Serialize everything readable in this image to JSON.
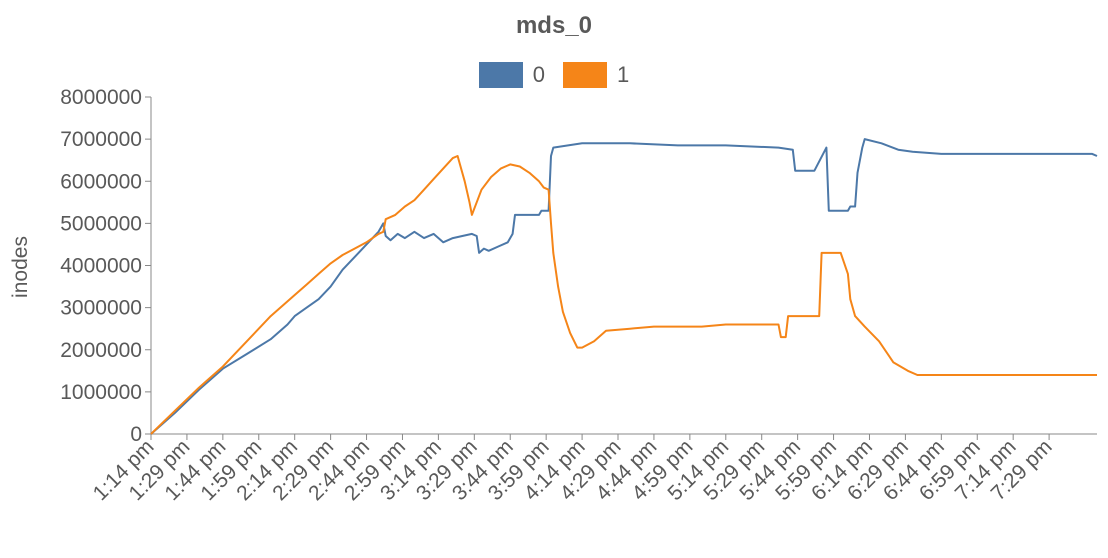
{
  "chart_data": {
    "type": "line",
    "title": "mds_0",
    "ylabel": "inodes",
    "xlabel": "",
    "ylim": [
      0,
      8000000
    ],
    "y_ticks": [
      0,
      1000000,
      2000000,
      3000000,
      4000000,
      5000000,
      6000000,
      7000000,
      8000000
    ],
    "x_ticks": [
      "1:14 pm",
      "1:29 pm",
      "1:44 pm",
      "1:59 pm",
      "2:14 pm",
      "2:29 pm",
      "2:44 pm",
      "2:59 pm",
      "3:14 pm",
      "3:29 pm",
      "3:44 pm",
      "3:59 pm",
      "4:14 pm",
      "4:29 pm",
      "4:44 pm",
      "4:59 pm",
      "5:14 pm",
      "5:29 pm",
      "5:44 pm",
      "5:59 pm",
      "6:14 pm",
      "6:29 pm",
      "6:44 pm",
      "6:59 pm",
      "7:14 pm",
      "7:29 pm"
    ],
    "x_unit": "minutes after 1:14 pm",
    "xlim": [
      0,
      395
    ],
    "legend_position": "top",
    "grid": false,
    "series": [
      {
        "name": "0",
        "color": "#4c78a8",
        "points": [
          [
            0,
            0
          ],
          [
            10,
            500000
          ],
          [
            20,
            1050000
          ],
          [
            30,
            1550000
          ],
          [
            40,
            1900000
          ],
          [
            50,
            2250000
          ],
          [
            57,
            2600000
          ],
          [
            60,
            2800000
          ],
          [
            65,
            3000000
          ],
          [
            70,
            3200000
          ],
          [
            75,
            3500000
          ],
          [
            80,
            3900000
          ],
          [
            85,
            4200000
          ],
          [
            90,
            4500000
          ],
          [
            95,
            4800000
          ],
          [
            97,
            5000000
          ],
          [
            98,
            4700000
          ],
          [
            100,
            4600000
          ],
          [
            103,
            4750000
          ],
          [
            106,
            4650000
          ],
          [
            110,
            4800000
          ],
          [
            114,
            4650000
          ],
          [
            118,
            4750000
          ],
          [
            122,
            4550000
          ],
          [
            126,
            4650000
          ],
          [
            130,
            4700000
          ],
          [
            134,
            4750000
          ],
          [
            136,
            4700000
          ],
          [
            137,
            4300000
          ],
          [
            139,
            4400000
          ],
          [
            141,
            4350000
          ],
          [
            145,
            4450000
          ],
          [
            149,
            4550000
          ],
          [
            151,
            4750000
          ],
          [
            152,
            5200000
          ],
          [
            162,
            5200000
          ],
          [
            163,
            5300000
          ],
          [
            166,
            5300000
          ],
          [
            167,
            6600000
          ],
          [
            168,
            6800000
          ],
          [
            180,
            6900000
          ],
          [
            200,
            6900000
          ],
          [
            220,
            6850000
          ],
          [
            240,
            6850000
          ],
          [
            262,
            6800000
          ],
          [
            268,
            6750000
          ],
          [
            269,
            6250000
          ],
          [
            277,
            6250000
          ],
          [
            282,
            6800000
          ],
          [
            283,
            5300000
          ],
          [
            291,
            5300000
          ],
          [
            292,
            5400000
          ],
          [
            294,
            5400000
          ],
          [
            295,
            6200000
          ],
          [
            297,
            6800000
          ],
          [
            298,
            7000000
          ],
          [
            305,
            6900000
          ],
          [
            312,
            6750000
          ],
          [
            318,
            6700000
          ],
          [
            330,
            6650000
          ],
          [
            393,
            6650000
          ],
          [
            395,
            6600000
          ]
        ]
      },
      {
        "name": "1",
        "color": "#f58518",
        "points": [
          [
            0,
            0
          ],
          [
            10,
            550000
          ],
          [
            20,
            1100000
          ],
          [
            30,
            1600000
          ],
          [
            40,
            2200000
          ],
          [
            50,
            2800000
          ],
          [
            60,
            3300000
          ],
          [
            65,
            3550000
          ],
          [
            70,
            3800000
          ],
          [
            75,
            4050000
          ],
          [
            80,
            4250000
          ],
          [
            85,
            4400000
          ],
          [
            90,
            4550000
          ],
          [
            95,
            4750000
          ],
          [
            97,
            4800000
          ],
          [
            98,
            5100000
          ],
          [
            102,
            5200000
          ],
          [
            106,
            5400000
          ],
          [
            110,
            5550000
          ],
          [
            114,
            5800000
          ],
          [
            118,
            6050000
          ],
          [
            122,
            6300000
          ],
          [
            126,
            6550000
          ],
          [
            128,
            6600000
          ],
          [
            131,
            6000000
          ],
          [
            133,
            5500000
          ],
          [
            134,
            5200000
          ],
          [
            136,
            5500000
          ],
          [
            138,
            5800000
          ],
          [
            142,
            6100000
          ],
          [
            146,
            6300000
          ],
          [
            150,
            6400000
          ],
          [
            154,
            6350000
          ],
          [
            158,
            6200000
          ],
          [
            162,
            6000000
          ],
          [
            164,
            5850000
          ],
          [
            166,
            5800000
          ],
          [
            167,
            5000000
          ],
          [
            168,
            4300000
          ],
          [
            170,
            3500000
          ],
          [
            172,
            2900000
          ],
          [
            175,
            2400000
          ],
          [
            178,
            2050000
          ],
          [
            180,
            2050000
          ],
          [
            185,
            2200000
          ],
          [
            190,
            2450000
          ],
          [
            200,
            2500000
          ],
          [
            210,
            2550000
          ],
          [
            230,
            2550000
          ],
          [
            240,
            2600000
          ],
          [
            250,
            2600000
          ],
          [
            262,
            2600000
          ],
          [
            263,
            2300000
          ],
          [
            265,
            2300000
          ],
          [
            266,
            2800000
          ],
          [
            279,
            2800000
          ],
          [
            280,
            4300000
          ],
          [
            288,
            4300000
          ],
          [
            291,
            3800000
          ],
          [
            292,
            3200000
          ],
          [
            294,
            2800000
          ],
          [
            298,
            2550000
          ],
          [
            304,
            2200000
          ],
          [
            310,
            1700000
          ],
          [
            316,
            1500000
          ],
          [
            320,
            1400000
          ],
          [
            395,
            1400000
          ]
        ]
      }
    ]
  }
}
